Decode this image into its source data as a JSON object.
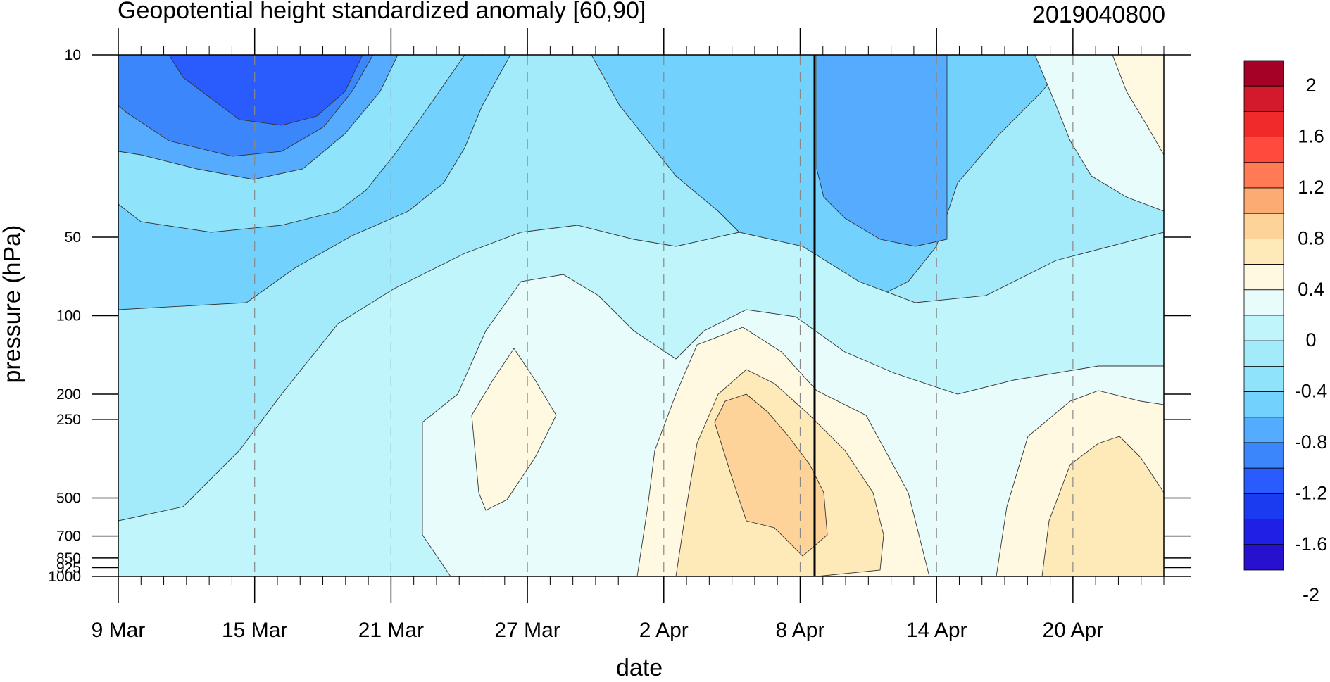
{
  "chart_data": {
    "type": "heatmap",
    "title_left": "Geopotential height standardized anomaly [60,90]",
    "title_right": "2019040800",
    "xlabel": "date",
    "ylabel": "pressure (hPa)",
    "x_ticks": [
      "9 Mar",
      "15 Mar",
      "21 Mar",
      "27 Mar",
      "2 Apr",
      "8 Apr",
      "14 Apr",
      "20 Apr"
    ],
    "y_ticks": [
      "10",
      "50",
      "100",
      "200",
      "250",
      "500",
      "700",
      "850",
      "925",
      "1000"
    ],
    "y_scale": "log",
    "ylim": [
      1000,
      10
    ],
    "xlim": [
      "9 Mar",
      "24 Apr"
    ],
    "vertical_marker": "8 Apr",
    "colorbar": {
      "labels": [
        "2",
        "1.6",
        "1.2",
        "0.8",
        "0.4",
        "0",
        "-0.4",
        "-0.8",
        "-1.2",
        "-1.6",
        "-2"
      ],
      "colors": [
        "#a50026",
        "#d21a2c",
        "#f02a2a",
        "#ff4a3d",
        "#ff7a55",
        "#fcab72",
        "#fdd39a",
        "#fee9b8",
        "#fff9e2",
        "#e8fcfc",
        "#c0f5fb",
        "#a3ebfb",
        "#8fe3fa",
        "#72d2fd",
        "#55abfd",
        "#3c86fb",
        "#2a5bfd",
        "#1a3bef",
        "#1f1fe6",
        "#2810cf"
      ]
    },
    "grid": true
  }
}
